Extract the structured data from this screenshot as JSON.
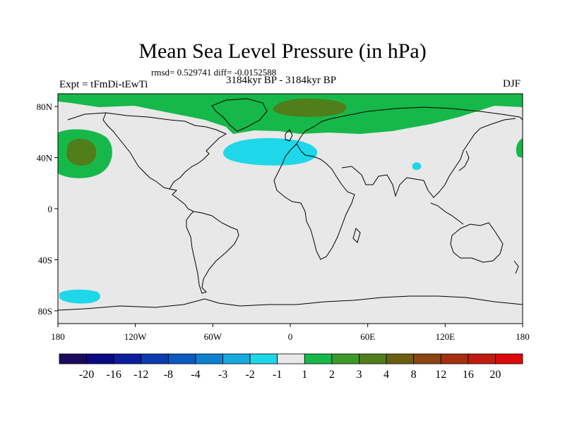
{
  "title": "Mean Sea Level Pressure (in hPa)",
  "stats": "rmsd= 0.529741 diff= -0.0152588",
  "experiment": "Expt = tFmDi-tEwTi",
  "period": "3184kyr BP - 3184kyr BP",
  "season": "DJF",
  "map": {
    "projection": "cylindrical equidistant",
    "lon_range": [
      -180,
      180
    ],
    "lat_range": [
      -90,
      90
    ],
    "lat_ticks": [
      {
        "value": 80,
        "label": "80N"
      },
      {
        "value": 40,
        "label": "40N"
      },
      {
        "value": 0,
        "label": "0"
      },
      {
        "value": -40,
        "label": "40S"
      },
      {
        "value": -80,
        "label": "80S"
      }
    ],
    "lon_ticks": [
      {
        "value": -180,
        "label": "180"
      },
      {
        "value": -120,
        "label": "120W"
      },
      {
        "value": -60,
        "label": "60W"
      },
      {
        "value": 0,
        "label": "0"
      },
      {
        "value": 60,
        "label": "60E"
      },
      {
        "value": 120,
        "label": "120E"
      },
      {
        "value": 180,
        "label": "180"
      }
    ],
    "background_color": "#e8e8e8",
    "coast_color": "#000000"
  },
  "colorbar": {
    "colors": [
      "#1c0a5e",
      "#0a0a84",
      "#0c1e9e",
      "#0c3cb0",
      "#0a5ac0",
      "#0e80d0",
      "#17aade",
      "#1ed7e8",
      "#e8e8e8",
      "#17b84a",
      "#3c9a2a",
      "#4f7e1a",
      "#6b5e10",
      "#8c4410",
      "#a53010",
      "#c01c10",
      "#dc0a0a"
    ],
    "labels": [
      "-20",
      "-16",
      "-12",
      "-8",
      "-4",
      "-3",
      "-2",
      "-1",
      "1",
      "2",
      "3",
      "4",
      "8",
      "12",
      "16",
      "20"
    ]
  }
}
